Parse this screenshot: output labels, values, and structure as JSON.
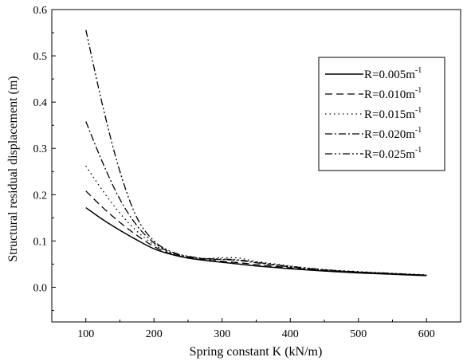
{
  "chart_data": {
    "type": "line",
    "title": "",
    "xlabel": "Spring constant K (kN/m)",
    "ylabel": "Structural residual displacement (m)",
    "xlim": [
      50,
      650
    ],
    "ylim": [
      -0.075,
      0.6
    ],
    "xticks": [
      "100",
      "200",
      "300",
      "400",
      "500",
      "600"
    ],
    "yticks": [
      "0.0",
      "0.1",
      "0.2",
      "0.3",
      "0.4",
      "0.5",
      "0.6"
    ],
    "grid": false,
    "legend_position": "top-right",
    "legend_unit": "m",
    "legend_exponent": "-1",
    "series": [
      {
        "name": "R=0.005",
        "dash": "solid",
        "x": [
          100,
          125,
          150,
          175,
          200,
          225,
          250,
          275,
          300,
          325,
          350,
          400,
          450,
          500,
          550,
          600
        ],
        "y": [
          0.172,
          0.146,
          0.123,
          0.102,
          0.083,
          0.071,
          0.063,
          0.058,
          0.054,
          0.05,
          0.046,
          0.04,
          0.035,
          0.031,
          0.028,
          0.025
        ]
      },
      {
        "name": "R=0.010",
        "dash": "dashed",
        "x": [
          100,
          125,
          150,
          175,
          200,
          225,
          250,
          275,
          300,
          325,
          350,
          400,
          450,
          500,
          550,
          600
        ],
        "y": [
          0.208,
          0.172,
          0.14,
          0.112,
          0.088,
          0.072,
          0.064,
          0.059,
          0.056,
          0.053,
          0.049,
          0.042,
          0.036,
          0.032,
          0.029,
          0.026
        ]
      },
      {
        "name": "R=0.015",
        "dash": "dotted",
        "x": [
          100,
          125,
          150,
          175,
          200,
          225,
          250,
          275,
          300,
          325,
          350,
          400,
          450,
          500,
          550,
          600
        ],
        "y": [
          0.262,
          0.208,
          0.16,
          0.121,
          0.092,
          0.074,
          0.066,
          0.062,
          0.064,
          0.063,
          0.056,
          0.046,
          0.038,
          0.034,
          0.03,
          0.027
        ]
      },
      {
        "name": "R=0.020",
        "dash": "dashdot",
        "x": [
          100,
          125,
          150,
          175,
          200,
          225,
          250,
          275,
          300,
          325,
          350,
          400,
          450,
          500,
          550,
          600
        ],
        "y": [
          0.358,
          0.268,
          0.19,
          0.133,
          0.096,
          0.075,
          0.066,
          0.061,
          0.06,
          0.058,
          0.053,
          0.044,
          0.037,
          0.033,
          0.029,
          0.026
        ]
      },
      {
        "name": "R=0.025",
        "dash": "dashdotdot",
        "x": [
          100,
          125,
          150,
          175,
          200,
          225,
          250,
          275,
          300,
          325,
          350,
          400,
          450,
          500,
          550,
          600
        ],
        "y": [
          0.556,
          0.39,
          0.25,
          0.15,
          0.1,
          0.077,
          0.067,
          0.062,
          0.061,
          0.059,
          0.054,
          0.045,
          0.038,
          0.033,
          0.03,
          0.026
        ]
      }
    ]
  }
}
